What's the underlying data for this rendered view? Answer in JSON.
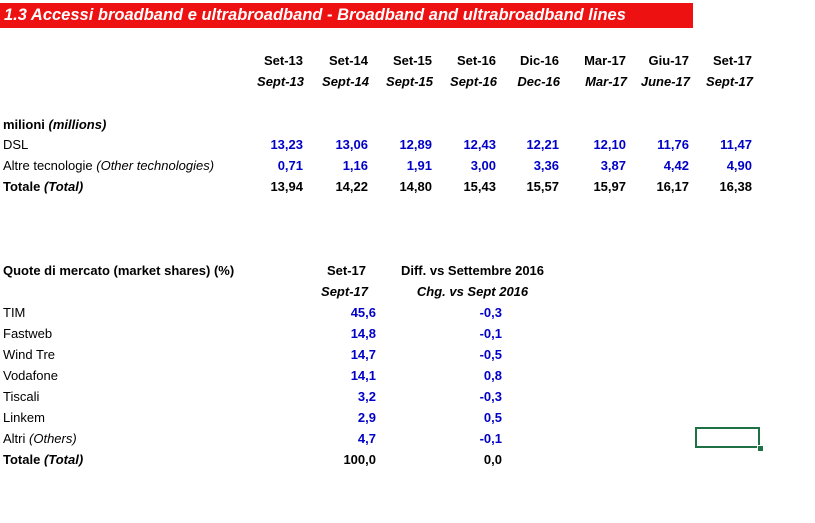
{
  "title": "1.3 Accessi broadband e ultrabroadband - Broadband and ultrabroadband lines",
  "table1": {
    "periods_it": [
      "Set-13",
      "Set-14",
      "Set-15",
      "Set-16",
      "Dic-16",
      "Mar-17",
      "Giu-17",
      "Set-17"
    ],
    "periods_en": [
      "Sept-13",
      "Sept-14",
      "Sept-15",
      "Sept-16",
      "Dec-16",
      "Mar-17",
      "June-17",
      "Sept-17"
    ],
    "unit_label": "milioni",
    "unit_label_en": "(millions)",
    "rows": [
      {
        "label": "DSL",
        "label_en": "",
        "values": [
          "13,23",
          "13,06",
          "12,89",
          "12,43",
          "12,21",
          "12,10",
          "11,76",
          "11,47"
        ]
      },
      {
        "label": "Altre tecnologie",
        "label_en": "(Other technologies)",
        "values": [
          "0,71",
          "1,16",
          "1,91",
          "3,00",
          "3,36",
          "3,87",
          "4,42",
          "4,90"
        ]
      },
      {
        "label": "Totale",
        "label_en": "(Total)",
        "values": [
          "13,94",
          "14,22",
          "14,80",
          "15,43",
          "15,57",
          "15,97",
          "16,17",
          "16,38"
        ]
      }
    ]
  },
  "table2": {
    "header_label": "Quote di mercato (market shares)  (%)",
    "col1_it": "Set-17",
    "col1_en": "Sept-17",
    "col2_it": "Diff. vs Settembre 2016",
    "col2_en": "Chg. vs Sept 2016",
    "rows": [
      {
        "label": "TIM",
        "label_en": "",
        "share": "45,6",
        "diff": "-0,3"
      },
      {
        "label": "Fastweb",
        "label_en": "",
        "share": "14,8",
        "diff": "-0,1"
      },
      {
        "label": "Wind Tre",
        "label_en": "",
        "share": "14,7",
        "diff": "-0,5"
      },
      {
        "label": "Vodafone",
        "label_en": "",
        "share": "14,1",
        "diff": "0,8"
      },
      {
        "label": "Tiscali",
        "label_en": "",
        "share": "3,2",
        "diff": "-0,3"
      },
      {
        "label": "Linkem",
        "label_en": "",
        "share": "2,9",
        "diff": "0,5"
      },
      {
        "label": "Altri",
        "label_en": "(Others)",
        "share": "4,7",
        "diff": "-0,1"
      },
      {
        "label": "Totale",
        "label_en": "(Total)",
        "share": "100,0",
        "diff": "0,0"
      }
    ]
  }
}
